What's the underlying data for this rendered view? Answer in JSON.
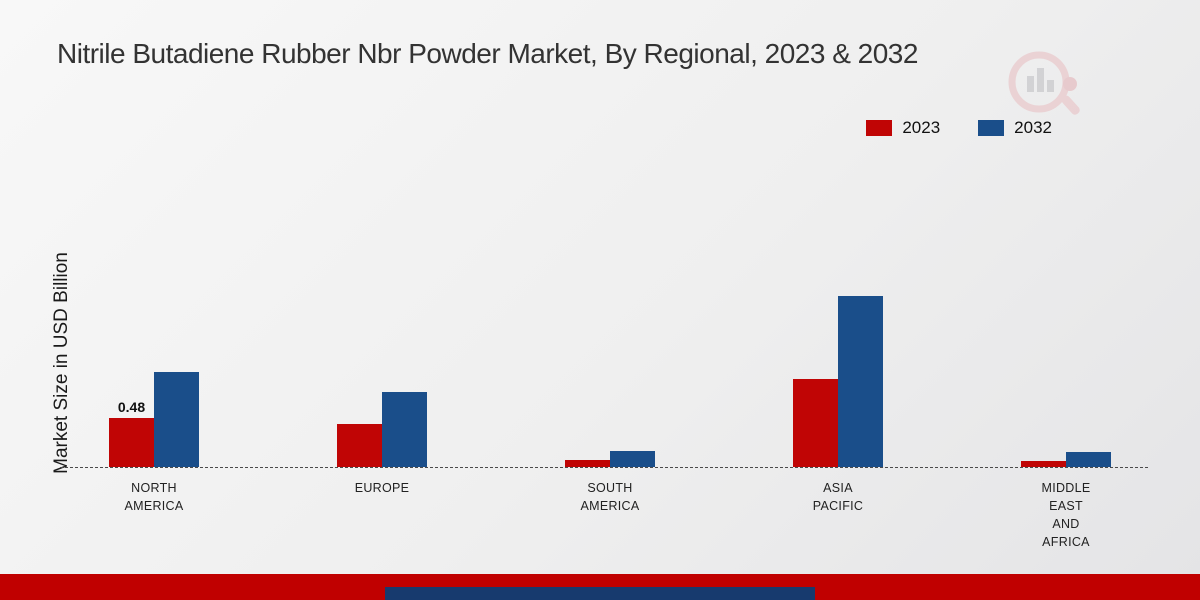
{
  "title": "Nitrile Butadiene Rubber Nbr Powder Market, By Regional, 2023 & 2032",
  "ylabel": "Market Size in USD Billion",
  "legend": {
    "items": [
      {
        "label": "2023",
        "color": "#c00505"
      },
      {
        "label": "2032",
        "color": "#1a4e8a"
      }
    ]
  },
  "annotation_value": "0.48",
  "colors": {
    "series_2023": "#c00505",
    "series_2032": "#1a4e8a",
    "footer_red": "#c00000",
    "footer_blue": "#173a6e"
  },
  "chart_data": {
    "type": "bar",
    "title": "Nitrile Butadiene Rubber Nbr Powder Market, By Regional, 2023 & 2032",
    "xlabel": "",
    "ylabel": "Market Size in USD Billion",
    "categories": [
      "North America",
      "Europe",
      "South America",
      "Asia Pacific",
      "Middle East and Africa"
    ],
    "category_labels": [
      [
        "NORTH",
        "AMERICA"
      ],
      [
        "EUROPE"
      ],
      [
        "SOUTH",
        "AMERICA"
      ],
      [
        "ASIA",
        "PACIFIC"
      ],
      [
        "MIDDLE",
        "EAST",
        "AND",
        "AFRICA"
      ]
    ],
    "series": [
      {
        "name": "2023",
        "color": "#c00505",
        "values": [
          0.48,
          0.42,
          0.07,
          0.86,
          0.06
        ]
      },
      {
        "name": "2032",
        "color": "#1a4e8a",
        "values": [
          0.93,
          0.74,
          0.16,
          1.68,
          0.15
        ]
      }
    ],
    "annotations": [
      {
        "series": "2023",
        "category": "North America",
        "text": "0.48"
      }
    ],
    "ylim": [
      0,
      1.8
    ],
    "grid": false,
    "legend_position": "top-right",
    "baseline_style": "dashed"
  }
}
